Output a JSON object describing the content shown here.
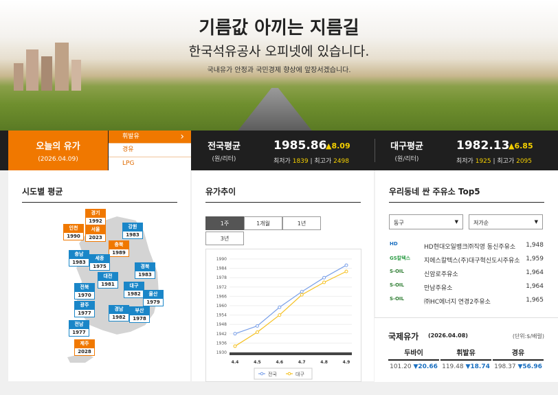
{
  "hero": {
    "title": "기름값 아끼는 지름길",
    "subtitle": "한국석유공사 오피넷에 있습니다.",
    "tagline": "국내유가 안정과 국민경제 향상에 앞장서겠습니다."
  },
  "today": {
    "label": "오늘의 유가",
    "date": "(2026.04.09)"
  },
  "fuels": [
    "휘발유",
    "경유",
    "LPG"
  ],
  "national": {
    "name": "전국평균",
    "unit": "(원/리터)",
    "value": "1985.86",
    "change": "▲8.09",
    "min_label": "최저가",
    "min": "1839",
    "max_label": "최고가",
    "max": "2498"
  },
  "daegu": {
    "name": "대구평균",
    "unit": "(원/리터)",
    "value": "1982.13",
    "change": "▲6.85",
    "min_label": "최저가",
    "min": "1925",
    "max_label": "최고가",
    "max": "2095"
  },
  "regions_title": "시도별 평균",
  "regions": [
    {
      "name": "경기",
      "price": "1992",
      "color": "o"
    },
    {
      "name": "인천",
      "price": "1990",
      "color": "o"
    },
    {
      "name": "서울",
      "price": "2023",
      "color": "o"
    },
    {
      "name": "강원",
      "price": "1983",
      "color": "b"
    },
    {
      "name": "충북",
      "price": "1989",
      "color": "o"
    },
    {
      "name": "충남",
      "price": "1983",
      "color": "b"
    },
    {
      "name": "세종",
      "price": "1975",
      "color": "b"
    },
    {
      "name": "경북",
      "price": "1983",
      "color": "b"
    },
    {
      "name": "대전",
      "price": "1981",
      "color": "b"
    },
    {
      "name": "전북",
      "price": "1970",
      "color": "b"
    },
    {
      "name": "대구",
      "price": "1982",
      "color": "b"
    },
    {
      "name": "울산",
      "price": "1979",
      "color": "b"
    },
    {
      "name": "광주",
      "price": "1977",
      "color": "b"
    },
    {
      "name": "경남",
      "price": "1982",
      "color": "b"
    },
    {
      "name": "부산",
      "price": "1978",
      "color": "b"
    },
    {
      "name": "전남",
      "price": "1977",
      "color": "b"
    },
    {
      "name": "제주",
      "price": "2028",
      "color": "o"
    }
  ],
  "trend_title": "유가추이",
  "trend_tabs": [
    "1주",
    "1개월",
    "1년",
    "3년"
  ],
  "chart_data": {
    "type": "line",
    "categories": [
      "4.4",
      "4.5",
      "4.6",
      "4.7",
      "4.8",
      "4.9"
    ],
    "ylim": [
      1930,
      1990
    ],
    "yticks": [
      "1990",
      "1984",
      "1978",
      "1972",
      "1966",
      "1960",
      "1954",
      "1948",
      "1942",
      "1936",
      "1930"
    ],
    "series": [
      {
        "name": "전국",
        "color": "#7aa0e8",
        "values": [
          1942,
          1947,
          1959,
          1969,
          1978,
          1986
        ]
      },
      {
        "name": "대구",
        "color": "#f5c020",
        "values": [
          1934,
          1943,
          1954,
          1967,
          1975,
          1982
        ]
      }
    ]
  },
  "top5_title": "우리동네 싼 주유소 Top5",
  "district_select": "동구",
  "sort_select": "저가순",
  "shops": [
    {
      "brand": "HD현대오일뱅크",
      "logo": "HD",
      "logo_color": "#1a6fc0",
      "name": "HD현대오일뱅크㈜직영 동신주유소",
      "price": "1,948"
    },
    {
      "brand": "GS칼텍스",
      "logo": "GS칼텍스",
      "logo_color": "#2f9e48",
      "name": "지에스칼텍스(주)대구혁신도시주유소",
      "price": "1,959"
    },
    {
      "brand": "S-OIL",
      "logo": "S-OIL",
      "logo_color": "#2e7d32",
      "name": "신암로주유소",
      "price": "1,964"
    },
    {
      "brand": "S-OIL",
      "logo": "S-OIL",
      "logo_color": "#2e7d32",
      "name": "만남주유소",
      "price": "1,964"
    },
    {
      "brand": "S-OIL",
      "logo": "S-OIL",
      "logo_color": "#2e7d32",
      "name": "㈜HC에너지 연경2주유소",
      "price": "1,965"
    }
  ],
  "intl": {
    "title": "국제유가",
    "date": "(2026.04.08)",
    "unit": "(단위:$/배럴)",
    "items": [
      {
        "name": "두바이",
        "value": "101.20",
        "change": "▼20.66"
      },
      {
        "name": "휘발유",
        "value": "119.48",
        "change": "▼18.74"
      },
      {
        "name": "경유",
        "value": "198.37",
        "change": "▼56.96"
      }
    ]
  }
}
